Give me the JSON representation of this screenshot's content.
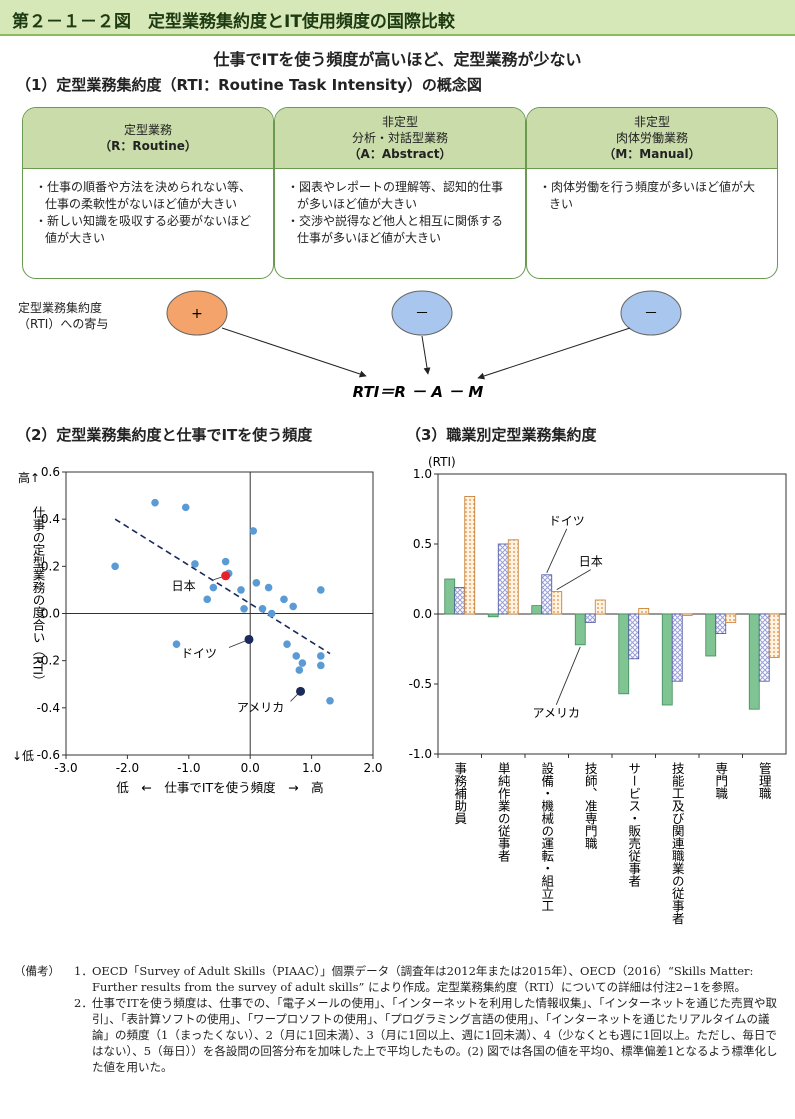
{
  "figure_title": "第２－１－２図　定型業務集約度とIT使用頻度の国際比較",
  "subtitle": "仕事でITを使う頻度が高いほど、定型業務が少ない",
  "section1": {
    "title": "（1）定型業務集約度（RTI：Routine Task Intensity）の概念図",
    "cards": [
      {
        "head": [
          "定型業務",
          "（R：Routine）"
        ],
        "body": [
          "・仕事の順番や方法を決められない等、仕事の柔軟性がないほど値が大きい",
          "・新しい知識を吸収する必要がないほど値が大きい"
        ]
      },
      {
        "head": [
          "非定型",
          "分析・対話型業務",
          "（A：Abstract）"
        ],
        "body": [
          "・図表やレポートの理解等、認知的仕事が多いほど値が大きい",
          "・交渉や説得など他人と相互に関係する仕事が多いほど値が大きい"
        ]
      },
      {
        "head": [
          "非定型",
          "肉体労働業務",
          "（M：Manual）"
        ],
        "body": [
          "・肉体労働を行う頻度が多いほど値が大きい"
        ]
      }
    ],
    "contribution_label": "定型業務集約度\n（RTI）への寄与",
    "signs": [
      "+",
      "－",
      "－"
    ],
    "sign_colors": [
      "#f4a46a",
      "#a9c6ee",
      "#a9c6ee"
    ],
    "formula": "RTI＝R － A － M"
  },
  "section2_title": "（2）定型業務集約度と仕事でITを使う頻度",
  "section3_title": "（3）職業別定型業務集約度",
  "chart_data": [
    {
      "type": "scatter",
      "xlabel": "低　←　仕事でITを使う頻度　→　高",
      "ylabel_top": "高↑",
      "ylabel": "仕事の定型業務の度合い（RTI）",
      "ylabel_bottom": "↓低",
      "xlim": [
        -3.0,
        2.0
      ],
      "ylim": [
        -0.6,
        0.6
      ],
      "xticks": [
        "-3.0",
        "-2.0",
        "-1.0",
        "0.0",
        "1.0",
        "2.0"
      ],
      "yticks": [
        "-0.6",
        "-0.4",
        "-0.2",
        "0.0",
        "0.2",
        "0.4",
        "0.6"
      ],
      "points": [
        {
          "x": -2.2,
          "y": 0.2
        },
        {
          "x": -1.55,
          "y": 0.47
        },
        {
          "x": -1.05,
          "y": 0.45
        },
        {
          "x": -0.9,
          "y": 0.21
        },
        {
          "x": -0.7,
          "y": 0.06
        },
        {
          "x": -0.6,
          "y": 0.11
        },
        {
          "x": -0.4,
          "y": 0.22
        },
        {
          "x": -0.35,
          "y": 0.17
        },
        {
          "x": -1.2,
          "y": -0.13
        },
        {
          "x": -0.15,
          "y": 0.1
        },
        {
          "x": -0.1,
          "y": 0.02
        },
        {
          "x": 0.05,
          "y": 0.35
        },
        {
          "x": 0.1,
          "y": 0.13
        },
        {
          "x": 0.2,
          "y": 0.02
        },
        {
          "x": 0.3,
          "y": 0.11
        },
        {
          "x": 0.35,
          "y": 0.0
        },
        {
          "x": 0.55,
          "y": 0.06
        },
        {
          "x": 0.6,
          "y": -0.13
        },
        {
          "x": 0.7,
          "y": 0.03
        },
        {
          "x": 0.75,
          "y": -0.18
        },
        {
          "x": 0.85,
          "y": -0.21
        },
        {
          "x": 0.8,
          "y": -0.24
        },
        {
          "x": 1.15,
          "y": 0.1
        },
        {
          "x": 1.15,
          "y": -0.18
        },
        {
          "x": 1.15,
          "y": -0.22
        },
        {
          "x": 1.3,
          "y": -0.37
        }
      ],
      "highlights": [
        {
          "label": "日本",
          "x": -0.4,
          "y": 0.16,
          "color": "#e8222a"
        },
        {
          "label": "ドイツ",
          "x": -0.02,
          "y": -0.11,
          "color": "#1a2a5a"
        },
        {
          "label": "アメリカ",
          "x": 0.82,
          "y": -0.33,
          "color": "#1a2a5a"
        }
      ],
      "trendline": {
        "x": [
          -2.2,
          1.3
        ],
        "y": [
          0.4,
          -0.17
        ]
      },
      "point_color": "#5b9bd5"
    },
    {
      "type": "bar",
      "ylabel": "(RTI)",
      "ylim": [
        -1.0,
        1.0
      ],
      "yticks": [
        "1.0",
        "0.5",
        "0.0",
        "-0.5",
        "-1.0"
      ],
      "categories": [
        "事務補助員",
        "単純作業の従事者",
        "設備・機械の運転・組立工",
        "技師、准専門職",
        "サービス・販売従事者",
        "技能工及び関連職業の従事者",
        "専門職",
        "管理職"
      ],
      "series": [
        {
          "name": "アメリカ",
          "values": [
            0.25,
            -0.02,
            0.06,
            -0.22,
            -0.57,
            -0.65,
            -0.3,
            -0.68
          ],
          "color": "#7fc492"
        },
        {
          "name": "ドイツ",
          "values": [
            0.19,
            0.5,
            0.28,
            -0.06,
            -0.32,
            -0.48,
            -0.14,
            -0.48
          ],
          "color": "#9aa0d6"
        },
        {
          "name": "日本",
          "values": [
            0.84,
            0.53,
            0.16,
            0.1,
            0.04,
            -0.01,
            -0.06,
            -0.31
          ],
          "color": "#f7c48a"
        }
      ]
    }
  ],
  "notes": {
    "prefix": "（備考）",
    "items": [
      {
        "num": "1．",
        "text": "OECD「Survey of Adult Skills（PIAAC）」個票データ（調査年は2012年または2015年）、OECD（2016）“Skills Matter: Further results from the survey of adult skills” により作成。定型業務集約度（RTI）についての詳細は付注2−1を参照。"
      },
      {
        "num": "2．",
        "text": "仕事でITを使う頻度は、仕事での、「電子メールの使用」、「インターネットを利用した情報収集」、「インターネットを通じた売買や取引」、「表計算ソフトの使用」、「ワープロソフトの使用」、「プログラミング言語の使用」、「インターネットを通じたリアルタイムの議論」の頻度（1（まったくない）、2（月に1回未満）、3（月に1回以上、週に1回未満）、4（少なくとも週に1回以上。ただし、毎日ではない）、5（毎日））を各設問の回答分布を加味した上で平均したもの。(2) 図では各国の値を平均0、標準偏差1となるよう標準化した値を用いた。"
      }
    ]
  }
}
